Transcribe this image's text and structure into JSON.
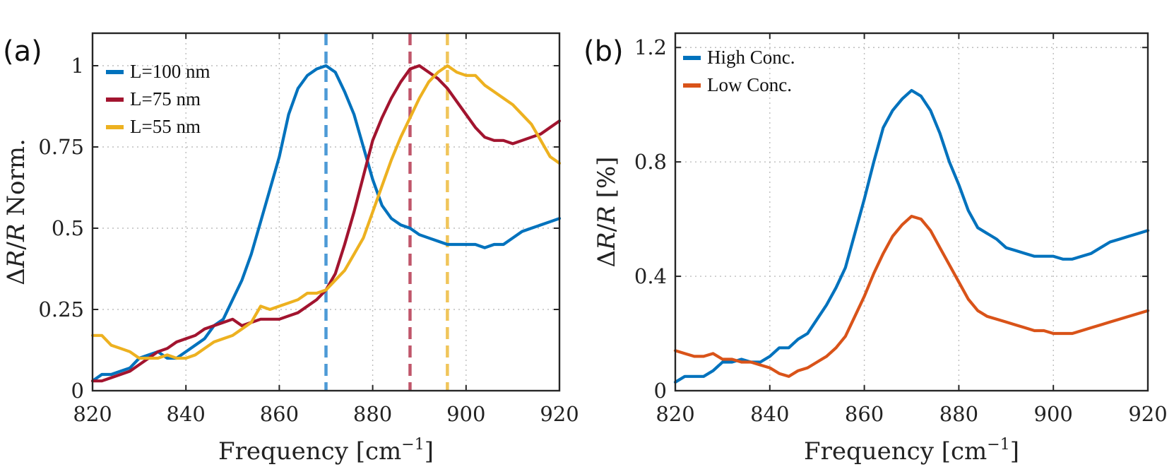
{
  "chart_data": [
    {
      "type": "line",
      "panel_label": "(a)",
      "xlabel": "Frequency [cm",
      "xlabel_sup": "−1",
      "xlabel_end": "]",
      "ylabel_delta": "Δ",
      "ylabel_R1": "R",
      "ylabel_slash": "/",
      "ylabel_R2": "R",
      "ylabel_rest": " Norm.",
      "xlim": [
        820,
        920
      ],
      "ylim": [
        0,
        1.1
      ],
      "xticks": [
        820,
        840,
        860,
        880,
        900,
        920
      ],
      "xtick_labels": [
        "820",
        "840",
        "860",
        "880",
        "900",
        "920"
      ],
      "yticks": [
        0,
        0.25,
        0.5,
        0.75,
        1
      ],
      "ytick_labels": [
        "0",
        "0.25",
        "0.5",
        "0.75",
        "1"
      ],
      "grid": true,
      "legend_position": "top-left",
      "series": [
        {
          "name": "L=100 nm",
          "color": "#0072bd",
          "x": [
            820,
            822,
            824,
            826,
            828,
            830,
            832,
            834,
            836,
            838,
            840,
            842,
            844,
            846,
            848,
            850,
            852,
            854,
            856,
            858,
            860,
            862,
            864,
            866,
            868,
            870,
            872,
            874,
            876,
            878,
            880,
            882,
            884,
            886,
            888,
            890,
            892,
            894,
            896,
            898,
            900,
            902,
            904,
            906,
            908,
            910,
            912,
            914,
            916,
            918,
            920
          ],
          "y": [
            0.03,
            0.05,
            0.05,
            0.06,
            0.07,
            0.1,
            0.11,
            0.12,
            0.1,
            0.1,
            0.12,
            0.14,
            0.16,
            0.2,
            0.22,
            0.28,
            0.34,
            0.42,
            0.52,
            0.62,
            0.72,
            0.85,
            0.93,
            0.97,
            0.99,
            1.0,
            0.98,
            0.92,
            0.85,
            0.75,
            0.65,
            0.57,
            0.53,
            0.51,
            0.5,
            0.48,
            0.47,
            0.46,
            0.45,
            0.45,
            0.45,
            0.45,
            0.44,
            0.45,
            0.45,
            0.47,
            0.49,
            0.5,
            0.51,
            0.52,
            0.53
          ]
        },
        {
          "name": "L=75 nm",
          "color": "#a2142f",
          "x": [
            820,
            822,
            824,
            826,
            828,
            830,
            832,
            834,
            836,
            838,
            840,
            842,
            844,
            846,
            848,
            850,
            852,
            854,
            856,
            858,
            860,
            862,
            864,
            866,
            868,
            870,
            872,
            874,
            876,
            878,
            880,
            882,
            884,
            886,
            888,
            890,
            892,
            894,
            896,
            898,
            900,
            902,
            904,
            906,
            908,
            910,
            912,
            914,
            916,
            918,
            920
          ],
          "y": [
            0.03,
            0.03,
            0.04,
            0.05,
            0.06,
            0.08,
            0.1,
            0.12,
            0.13,
            0.15,
            0.16,
            0.17,
            0.19,
            0.2,
            0.21,
            0.22,
            0.2,
            0.21,
            0.22,
            0.22,
            0.22,
            0.23,
            0.24,
            0.26,
            0.28,
            0.31,
            0.36,
            0.45,
            0.55,
            0.66,
            0.77,
            0.84,
            0.9,
            0.95,
            0.99,
            1.0,
            0.98,
            0.96,
            0.93,
            0.89,
            0.85,
            0.81,
            0.78,
            0.77,
            0.77,
            0.76,
            0.77,
            0.78,
            0.79,
            0.81,
            0.83
          ]
        },
        {
          "name": "L=55 nm",
          "color": "#edb120",
          "x": [
            820,
            822,
            824,
            826,
            828,
            830,
            832,
            834,
            836,
            838,
            840,
            842,
            844,
            846,
            848,
            850,
            852,
            854,
            856,
            858,
            860,
            862,
            864,
            866,
            868,
            870,
            872,
            874,
            876,
            878,
            880,
            882,
            884,
            886,
            888,
            890,
            892,
            894,
            896,
            898,
            900,
            902,
            904,
            906,
            908,
            910,
            912,
            914,
            916,
            918,
            920
          ],
          "y": [
            0.17,
            0.17,
            0.14,
            0.13,
            0.12,
            0.1,
            0.1,
            0.1,
            0.11,
            0.1,
            0.1,
            0.11,
            0.13,
            0.15,
            0.16,
            0.17,
            0.19,
            0.21,
            0.26,
            0.25,
            0.26,
            0.27,
            0.28,
            0.3,
            0.3,
            0.31,
            0.34,
            0.37,
            0.42,
            0.47,
            0.55,
            0.63,
            0.71,
            0.78,
            0.84,
            0.9,
            0.95,
            0.98,
            1.0,
            0.98,
            0.97,
            0.97,
            0.94,
            0.92,
            0.9,
            0.88,
            0.85,
            0.82,
            0.77,
            0.72,
            0.7
          ]
        }
      ],
      "vlines": [
        {
          "x": 870,
          "color": "#4d9ad6"
        },
        {
          "x": 888,
          "color": "#c0566a"
        },
        {
          "x": 896,
          "color": "#f0c55a"
        }
      ]
    },
    {
      "type": "line",
      "panel_label": "(b)",
      "xlabel": "Frequency [cm",
      "xlabel_sup": "−1",
      "xlabel_end": "]",
      "ylabel_delta": "Δ",
      "ylabel_R1": "R",
      "ylabel_slash": "/",
      "ylabel_R2": "R",
      "ylabel_rest": " [%]",
      "xlim": [
        820,
        920
      ],
      "ylim": [
        0,
        1.25
      ],
      "xticks": [
        820,
        840,
        860,
        880,
        900,
        920
      ],
      "xtick_labels": [
        "820",
        "840",
        "860",
        "880",
        "900",
        "920"
      ],
      "yticks": [
        0,
        0.4,
        0.8,
        1.2
      ],
      "ytick_labels": [
        "0",
        "0.4",
        "0.8",
        "1.2"
      ],
      "grid": true,
      "legend_position": "top-left",
      "series": [
        {
          "name": "High Conc.",
          "color": "#0072bd",
          "x": [
            820,
            822,
            824,
            826,
            828,
            830,
            832,
            834,
            836,
            838,
            840,
            842,
            844,
            846,
            848,
            850,
            852,
            854,
            856,
            858,
            860,
            862,
            864,
            866,
            868,
            870,
            872,
            874,
            876,
            878,
            880,
            882,
            884,
            886,
            888,
            890,
            892,
            894,
            896,
            898,
            900,
            902,
            904,
            906,
            908,
            910,
            912,
            914,
            916,
            918,
            920
          ],
          "y": [
            0.03,
            0.05,
            0.05,
            0.05,
            0.07,
            0.1,
            0.1,
            0.11,
            0.1,
            0.1,
            0.12,
            0.15,
            0.15,
            0.18,
            0.2,
            0.25,
            0.3,
            0.36,
            0.43,
            0.55,
            0.67,
            0.8,
            0.92,
            0.98,
            1.02,
            1.05,
            1.03,
            0.98,
            0.9,
            0.8,
            0.72,
            0.63,
            0.57,
            0.55,
            0.53,
            0.5,
            0.49,
            0.48,
            0.47,
            0.47,
            0.47,
            0.46,
            0.46,
            0.47,
            0.48,
            0.5,
            0.52,
            0.53,
            0.54,
            0.55,
            0.56
          ]
        },
        {
          "name": "Low Conc.",
          "color": "#d95319",
          "x": [
            820,
            822,
            824,
            826,
            828,
            830,
            832,
            834,
            836,
            838,
            840,
            842,
            844,
            846,
            848,
            850,
            852,
            854,
            856,
            858,
            860,
            862,
            864,
            866,
            868,
            870,
            872,
            874,
            876,
            878,
            880,
            882,
            884,
            886,
            888,
            890,
            892,
            894,
            896,
            898,
            900,
            902,
            904,
            906,
            908,
            910,
            912,
            914,
            916,
            918,
            920
          ],
          "y": [
            0.14,
            0.13,
            0.12,
            0.12,
            0.13,
            0.11,
            0.11,
            0.1,
            0.1,
            0.09,
            0.08,
            0.06,
            0.05,
            0.07,
            0.08,
            0.1,
            0.12,
            0.15,
            0.19,
            0.26,
            0.33,
            0.41,
            0.48,
            0.54,
            0.58,
            0.61,
            0.6,
            0.56,
            0.5,
            0.44,
            0.38,
            0.32,
            0.28,
            0.26,
            0.25,
            0.24,
            0.23,
            0.22,
            0.21,
            0.21,
            0.2,
            0.2,
            0.2,
            0.21,
            0.22,
            0.23,
            0.24,
            0.25,
            0.26,
            0.27,
            0.28
          ]
        }
      ],
      "vlines": []
    }
  ]
}
